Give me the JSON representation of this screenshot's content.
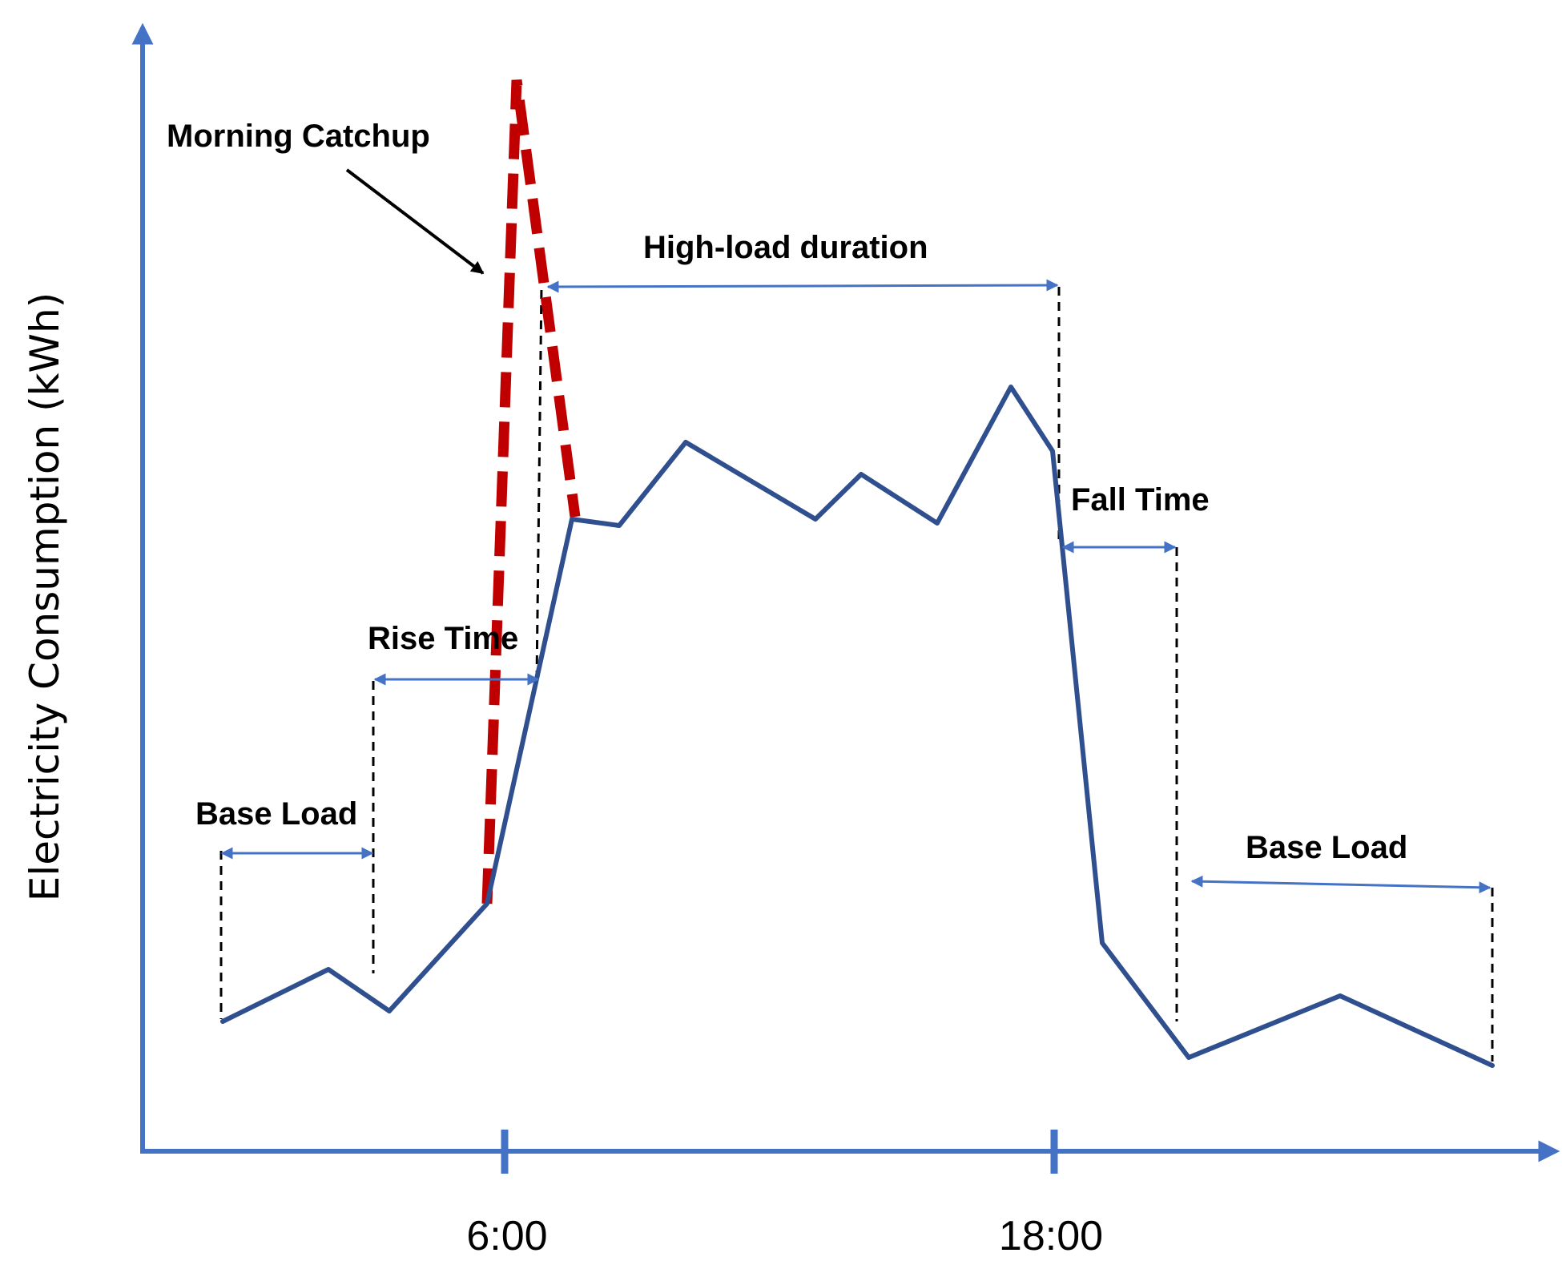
{
  "colors": {
    "axis": "#4472C4",
    "consumption_line": "#2F4F8F",
    "catchup_line": "#C00000",
    "guide_line": "#000000",
    "span_arrow": "#4472C4",
    "callout_arrow": "#000000"
  },
  "axes": {
    "y_label": "Electricity Consumption (kWh)",
    "x_ticks": [
      "6:00",
      "18:00"
    ]
  },
  "annotations": {
    "morning_catchup": "Morning Catchup",
    "high_load_duration": "High-load duration",
    "rise_time": "Rise Time",
    "fall_time": "Fall Time",
    "base_load_left": "Base Load",
    "base_load_right": "Base Load"
  }
}
